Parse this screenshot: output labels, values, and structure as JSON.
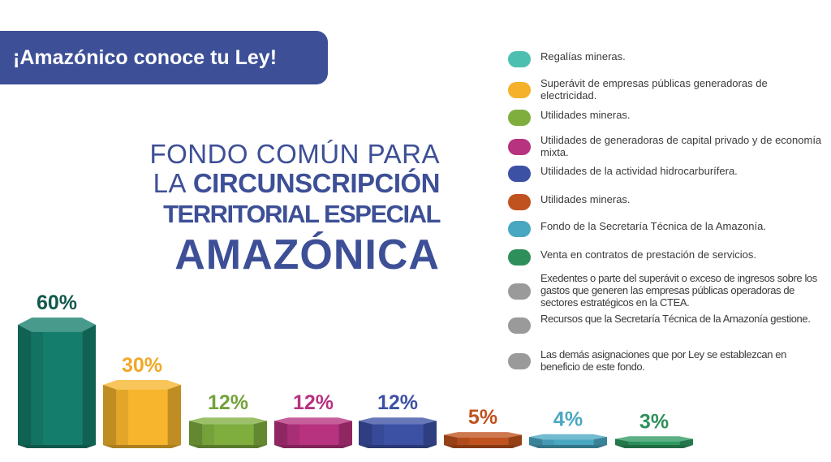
{
  "banner": {
    "text": "¡Amazónico conoce tu Ley!"
  },
  "title": {
    "line1": "FONDO COMÚN PARA",
    "line2_prefix": "LA ",
    "line2_bold": "CIRCUNSCRIPCIÓN",
    "line3": "TERRITORIAL ESPECIAL",
    "line4": "AMAZÓNICA"
  },
  "legend": [
    {
      "text": "Regalías mineras.",
      "color": "#4dbfb0",
      "icon": "teal-dot"
    },
    {
      "text": "Superávit de empresas públicas generadoras de electricidad.",
      "color": "#f6b12a",
      "icon": "yellow-dot"
    },
    {
      "text": "Utilidades mineras.",
      "color": "#7fae3f",
      "icon": "green-dot"
    },
    {
      "text": "Utilidades de generadoras de capital privado y de economía mixta.",
      "color": "#b7327f",
      "icon": "magenta-dot"
    },
    {
      "text": "Utilidades de la actividad hidrocarburífera.",
      "color": "#3c50a4",
      "icon": "blue-dot"
    },
    {
      "text": "Utilidades mineras.",
      "color": "#c0521f",
      "icon": "orange-dot"
    },
    {
      "text": "Fondo de la Secretaría Técnica de la Amazonía.",
      "color": "#4aa7c2",
      "icon": "light-blue-dot"
    },
    {
      "text": "Venta en contratos de prestación de servicios.",
      "color": "#2f8f5b",
      "icon": "dark-green-dot"
    },
    {
      "text": "Exedentes o parte del superávit o exceso de ingresos sobre los gastos que generen las empresas públicas operadoras de sectores estratégicos en la CTEA.",
      "color": "#9a9a9a",
      "icon": "grey-dot"
    },
    {
      "text": "Recursos que la Secretaría Técnica de la Amazonía gestione.",
      "color": "#9a9a9a",
      "icon": "grey-dot"
    },
    {
      "text": "Las demás asignaciones que por Ley se establezcan en beneficio de este fondo.",
      "color": "#9a9a9a",
      "icon": "grey-dot"
    }
  ],
  "chart_data": {
    "type": "bar",
    "title": "",
    "xlabel": "",
    "ylabel": "",
    "categories": [
      "Regalías mineras.",
      "Superávit de empresas públicas generadoras de electricidad.",
      "Utilidades mineras.",
      "Utilidades de generadoras de capital privado y de economía mixta.",
      "Utilidades de la actividad hidrocarburífera.",
      "Utilidades mineras.",
      "Fondo de la Secretaría Técnica de la Amazonía.",
      "Venta en contratos de prestación de servicios."
    ],
    "values": [
      60,
      30,
      12,
      12,
      12,
      5,
      4,
      3
    ],
    "labels": [
      "60%",
      "30%",
      "12%",
      "12%",
      "12%",
      "5%",
      "4%",
      "3%"
    ],
    "colors": [
      "#157d6b",
      "#f6b52c",
      "#7fae3f",
      "#b7327f",
      "#3c50a4",
      "#c0521f",
      "#4aa7c2",
      "#2f9a62"
    ],
    "label_colors": [
      "#13584d",
      "#f0a828",
      "#73a23c",
      "#b7327f",
      "#3c50a4",
      "#c0521f",
      "#4aa7c2",
      "#2f8f5b"
    ],
    "ylim": [
      0,
      60
    ],
    "legend": "right",
    "grid": false
  }
}
